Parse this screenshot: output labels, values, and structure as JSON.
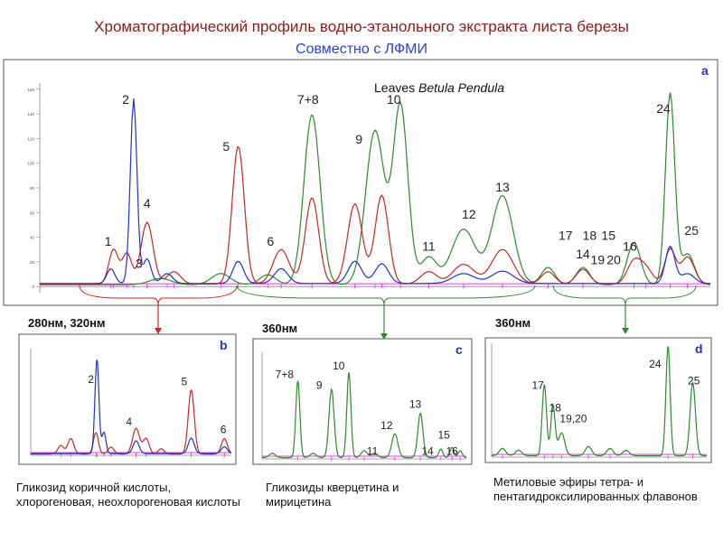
{
  "header": {
    "title": "Хроматографический профиль водно-этанольного экстракта листа березы",
    "subtitle": "Совместно с ЛФМИ"
  },
  "colors": {
    "green": "#2e8b2e",
    "red": "#c62828",
    "blue": "#2233cc",
    "magenta": "#e040e0",
    "title": "#8b1a1a",
    "subtitle": "#2a3fd4",
    "arrow_red": "#dd2222",
    "arrow_green": "#2e8b2e"
  },
  "chart_data": [
    {
      "panel": "a",
      "type": "line",
      "title_prefix": "Leaves ",
      "title_species": "Betula Pendula",
      "x_domain": [
        0,
        50
      ],
      "ylim": [
        -5,
        165
      ],
      "y_ticks": [
        0,
        20,
        40,
        60,
        80,
        100,
        120,
        140,
        160
      ],
      "series": [
        {
          "color": "green",
          "peaks": [
            [
              9,
              5,
              0.8
            ],
            [
              13.5,
              9,
              0.7
            ],
            [
              17,
              8,
              0.6
            ],
            [
              20.3,
              138,
              0.6
            ],
            [
              25,
              125,
              0.7
            ],
            [
              26.9,
              145,
              0.55
            ],
            [
              29,
              22,
              0.6
            ],
            [
              31.6,
              45,
              0.9
            ],
            [
              34.5,
              72,
              0.8
            ],
            [
              37.9,
              14,
              0.5
            ],
            [
              40.5,
              14,
              0.5
            ],
            [
              44.3,
              34,
              0.5
            ],
            [
              47,
              155,
              0.35
            ],
            [
              48.3,
              25,
              0.5
            ]
          ]
        },
        {
          "color": "red",
          "peaks": [
            [
              5.5,
              28,
              0.35
            ],
            [
              6.5,
              25,
              0.35
            ],
            [
              8,
              50,
              0.45
            ],
            [
              10,
              10,
              0.5
            ],
            [
              14.8,
              112,
              0.45
            ],
            [
              18,
              28,
              0.6
            ],
            [
              20.3,
              70,
              0.5
            ],
            [
              23.5,
              65,
              0.55
            ],
            [
              25.5,
              72,
              0.5
            ],
            [
              29,
              10,
              0.6
            ],
            [
              31.6,
              16,
              0.8
            ],
            [
              34.5,
              28,
              0.8
            ],
            [
              37.9,
              10,
              0.5
            ],
            [
              40.5,
              12,
              0.5
            ],
            [
              44.3,
              18,
              0.5
            ],
            [
              45.2,
              12,
              0.5
            ],
            [
              47,
              28,
              0.4
            ],
            [
              48.3,
              22,
              0.5
            ]
          ]
        },
        {
          "color": "blue",
          "peaks": [
            [
              5.3,
              12,
              0.3
            ],
            [
              7,
              150,
              0.25
            ],
            [
              8,
              20,
              0.3
            ],
            [
              9.5,
              8,
              0.4
            ],
            [
              14.8,
              18,
              0.4
            ],
            [
              18,
              12,
              0.5
            ],
            [
              23.5,
              18,
              0.5
            ],
            [
              25.5,
              16,
              0.5
            ],
            [
              31.6,
              8,
              0.8
            ],
            [
              34.5,
              10,
              0.8
            ],
            [
              47,
              30,
              0.35
            ],
            [
              48.3,
              8,
              0.5
            ]
          ]
        }
      ],
      "peak_labels": [
        {
          "text": "1",
          "x": 5.1,
          "y": 33
        },
        {
          "text": "2",
          "x": 6.4,
          "y": 148
        },
        {
          "text": "3",
          "x": 7.4,
          "y": 15
        },
        {
          "text": "4",
          "x": 8.0,
          "y": 64
        },
        {
          "text": "5",
          "x": 13.9,
          "y": 110
        },
        {
          "text": "6",
          "x": 17.2,
          "y": 33
        },
        {
          "text": "7+8",
          "x": 20.0,
          "y": 148
        },
        {
          "text": "9",
          "x": 23.8,
          "y": 116
        },
        {
          "text": "10",
          "x": 26.4,
          "y": 148
        },
        {
          "text": "11",
          "x": 29.0,
          "y": 29
        },
        {
          "text": "12",
          "x": 32.0,
          "y": 55
        },
        {
          "text": "13",
          "x": 34.5,
          "y": 77
        },
        {
          "text": "14",
          "x": 40.5,
          "y": 23
        },
        {
          "text": "15",
          "x": 42.4,
          "y": 38
        },
        {
          "text": "16",
          "x": 44.0,
          "y": 29
        },
        {
          "text": "17",
          "x": 39.2,
          "y": 38
        },
        {
          "text": "18",
          "x": 41.0,
          "y": 38
        },
        {
          "text": "19",
          "x": 41.6,
          "y": 18
        },
        {
          "text": "20",
          "x": 42.8,
          "y": 18
        },
        {
          "text": "24",
          "x": 46.5,
          "y": 141
        },
        {
          "text": "25",
          "x": 48.6,
          "y": 42
        }
      ]
    },
    {
      "panel": "b",
      "type": "line",
      "wavelength_label": "280нм, 320нм",
      "x_domain": [
        0,
        20
      ],
      "ylim": [
        0,
        125
      ],
      "series": [
        {
          "color": "red",
          "peaks": [
            [
              3,
              10,
              0.3
            ],
            [
              4,
              18,
              0.3
            ],
            [
              6.5,
              25,
              0.25
            ],
            [
              8,
              8,
              0.3
            ],
            [
              10.5,
              30,
              0.35
            ],
            [
              11.5,
              18,
              0.3
            ],
            [
              13,
              6,
              0.3
            ],
            [
              16,
              75,
              0.3
            ],
            [
              19.3,
              18,
              0.3
            ]
          ]
        },
        {
          "color": "blue",
          "peaks": [
            [
              6.6,
              110,
              0.2
            ],
            [
              7.3,
              25,
              0.2
            ],
            [
              10.5,
              15,
              0.3
            ],
            [
              16,
              18,
              0.3
            ],
            [
              19.3,
              8,
              0.3
            ]
          ]
        }
      ],
      "peak_labels": [
        {
          "text": "2",
          "x": 6.0,
          "y": 85
        },
        {
          "text": "4",
          "x": 9.8,
          "y": 35
        },
        {
          "text": "5",
          "x": 15.3,
          "y": 82
        },
        {
          "text": "6",
          "x": 19.2,
          "y": 26
        }
      ]
    },
    {
      "panel": "c",
      "type": "line",
      "wavelength_label": "360нм",
      "x_domain": [
        0,
        20
      ],
      "ylim": [
        0,
        125
      ],
      "series": [
        {
          "color": "green",
          "peaks": [
            [
              1,
              5,
              0.3
            ],
            [
              3.5,
              90,
              0.2
            ],
            [
              5,
              5,
              0.3
            ],
            [
              6.8,
              80,
              0.25
            ],
            [
              8.5,
              100,
              0.2
            ],
            [
              10,
              8,
              0.3
            ],
            [
              11,
              5,
              0.3
            ],
            [
              13,
              28,
              0.3
            ],
            [
              15.5,
              52,
              0.25
            ],
            [
              17.5,
              10,
              0.2
            ],
            [
              18.6,
              12,
              0.2
            ],
            [
              19.4,
              8,
              0.2
            ]
          ]
        }
      ],
      "peak_labels": [
        {
          "text": "7+8",
          "x": 2.2,
          "y": 95
        },
        {
          "text": "9",
          "x": 5.6,
          "y": 82
        },
        {
          "text": "10",
          "x": 7.5,
          "y": 105
        },
        {
          "text": "11",
          "x": 10.8,
          "y": 5
        },
        {
          "text": "12",
          "x": 12.2,
          "y": 35
        },
        {
          "text": "13",
          "x": 15.0,
          "y": 60
        },
        {
          "text": "14",
          "x": 16.2,
          "y": 5
        },
        {
          "text": "15",
          "x": 17.8,
          "y": 24
        },
        {
          "text": "16",
          "x": 18.6,
          "y": 5
        }
      ]
    },
    {
      "panel": "d",
      "type": "line",
      "wavelength_label": "360нм",
      "x_domain": [
        0,
        20
      ],
      "ylim": [
        0,
        125
      ],
      "series": [
        {
          "color": "green",
          "peaks": [
            [
              1,
              8,
              0.3
            ],
            [
              2.5,
              6,
              0.3
            ],
            [
              4.9,
              78,
              0.2
            ],
            [
              5.7,
              55,
              0.2
            ],
            [
              6.5,
              25,
              0.3
            ],
            [
              9,
              10,
              0.3
            ],
            [
              11,
              8,
              0.3
            ],
            [
              12.5,
              6,
              0.3
            ],
            [
              16.4,
              120,
              0.2
            ],
            [
              18.7,
              80,
              0.25
            ]
          ]
        }
      ],
      "peak_labels": [
        {
          "text": "17",
          "x": 4.3,
          "y": 75
        },
        {
          "text": "18",
          "x": 5.9,
          "y": 50
        },
        {
          "text": "19,20",
          "x": 7.6,
          "y": 38
        },
        {
          "text": "24",
          "x": 15.2,
          "y": 98
        },
        {
          "text": "25",
          "x": 18.8,
          "y": 80
        }
      ]
    }
  ],
  "captions": {
    "b": "Гликозид коричной кислоты, хлорогеновая, неохлорогеновая кислоты",
    "c": "Гликозиды кверцетина и мирицетина",
    "d": "Метиловые эфиры тетра- и пентагидроксилированных флавонов"
  }
}
